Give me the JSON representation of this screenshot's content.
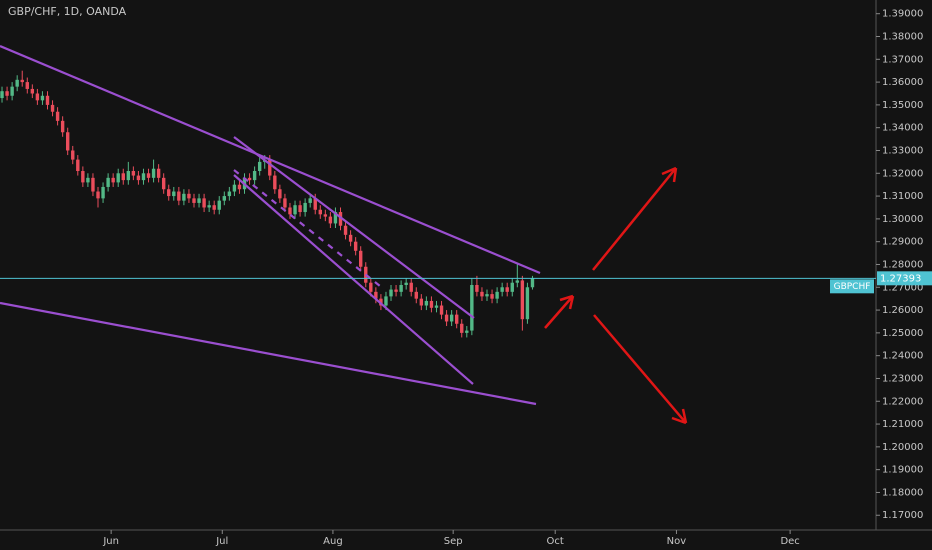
{
  "chart_data": {
    "type": "candlestick",
    "title": "GBP/CHF, 1D, OANDA",
    "symbol": "GBPCHF",
    "up_color": "#53b987",
    "down_color": "#eb4d5c",
    "last_price": 1.27393,
    "last_price_color": "#4fc3d2",
    "open": [
      1.353,
      1.356,
      1.354,
      1.358,
      1.361,
      1.36,
      1.357,
      1.355,
      1.352,
      1.354,
      1.35,
      1.347,
      1.343,
      1.338,
      1.33,
      1.326,
      1.321,
      1.316,
      1.318,
      1.312,
      1.309,
      1.314,
      1.318,
      1.316,
      1.32,
      1.317,
      1.321,
      1.319,
      1.317,
      1.32,
      1.318,
      1.322,
      1.318,
      1.313,
      1.31,
      1.312,
      1.308,
      1.311,
      1.309,
      1.307,
      1.309,
      1.305,
      1.306,
      1.304,
      1.308,
      1.31,
      1.312,
      1.315,
      1.313,
      1.318,
      1.317,
      1.321,
      1.325,
      1.326,
      1.319,
      1.313,
      1.309,
      1.305,
      1.302,
      1.306,
      1.303,
      1.307,
      1.309,
      1.304,
      1.302,
      1.301,
      1.298,
      1.303,
      1.297,
      1.293,
      1.29,
      1.286,
      1.279,
      1.272,
      1.268,
      1.265,
      1.262,
      1.266,
      1.269,
      1.268,
      1.271,
      1.272,
      1.268,
      1.265,
      1.262,
      1.264,
      1.261,
      1.262,
      1.258,
      1.255,
      1.258,
      1.254,
      1.25,
      1.251,
      1.271,
      1.268,
      1.266,
      1.267,
      1.265,
      1.268,
      1.27,
      1.268,
      1.272,
      1.273,
      1.256,
      1.27
    ],
    "high": [
      1.358,
      1.358,
      1.36,
      1.363,
      1.365,
      1.362,
      1.359,
      1.357,
      1.356,
      1.356,
      1.352,
      1.349,
      1.345,
      1.34,
      1.332,
      1.328,
      1.323,
      1.32,
      1.32,
      1.314,
      1.316,
      1.32,
      1.32,
      1.322,
      1.322,
      1.325,
      1.323,
      1.321,
      1.322,
      1.322,
      1.326,
      1.324,
      1.32,
      1.315,
      1.314,
      1.314,
      1.313,
      1.313,
      1.311,
      1.311,
      1.311,
      1.308,
      1.308,
      1.31,
      1.312,
      1.314,
      1.317,
      1.317,
      1.32,
      1.32,
      1.323,
      1.327,
      1.328,
      1.328,
      1.321,
      1.315,
      1.311,
      1.307,
      1.308,
      1.308,
      1.309,
      1.311,
      1.311,
      1.306,
      1.304,
      1.303,
      1.305,
      1.305,
      1.299,
      1.295,
      1.292,
      1.288,
      1.281,
      1.274,
      1.27,
      1.267,
      1.268,
      1.271,
      1.271,
      1.273,
      1.274,
      1.274,
      1.27,
      1.267,
      1.266,
      1.266,
      1.264,
      1.264,
      1.26,
      1.26,
      1.26,
      1.256,
      1.253,
      1.274,
      1.275,
      1.27,
      1.269,
      1.269,
      1.27,
      1.272,
      1.272,
      1.274,
      1.28,
      1.275,
      1.272,
      1.275
    ],
    "low": [
      1.351,
      1.352,
      1.352,
      1.356,
      1.358,
      1.355,
      1.353,
      1.35,
      1.35,
      1.348,
      1.345,
      1.341,
      1.336,
      1.328,
      1.324,
      1.319,
      1.314,
      1.314,
      1.31,
      1.305,
      1.307,
      1.312,
      1.314,
      1.314,
      1.315,
      1.315,
      1.317,
      1.315,
      1.315,
      1.316,
      1.316,
      1.316,
      1.311,
      1.308,
      1.308,
      1.306,
      1.306,
      1.307,
      1.305,
      1.305,
      1.303,
      1.303,
      1.302,
      1.302,
      1.306,
      1.308,
      1.31,
      1.311,
      1.311,
      1.315,
      1.315,
      1.319,
      1.322,
      1.317,
      1.311,
      1.307,
      1.303,
      1.3,
      1.3,
      1.301,
      1.301,
      1.305,
      1.302,
      1.3,
      1.299,
      1.296,
      1.296,
      1.295,
      1.291,
      1.288,
      1.284,
      1.277,
      1.27,
      1.266,
      1.263,
      1.26,
      1.26,
      1.264,
      1.266,
      1.266,
      1.269,
      1.266,
      1.263,
      1.26,
      1.26,
      1.259,
      1.259,
      1.256,
      1.253,
      1.253,
      1.252,
      1.248,
      1.248,
      1.249,
      1.266,
      1.264,
      1.264,
      1.263,
      1.263,
      1.266,
      1.266,
      1.266,
      1.27,
      1.251,
      1.254,
      1.269
    ],
    "close": [
      1.356,
      1.354,
      1.358,
      1.361,
      1.36,
      1.357,
      1.355,
      1.352,
      1.354,
      1.35,
      1.347,
      1.343,
      1.338,
      1.33,
      1.326,
      1.321,
      1.316,
      1.318,
      1.312,
      1.309,
      1.314,
      1.318,
      1.316,
      1.32,
      1.317,
      1.321,
      1.319,
      1.317,
      1.32,
      1.318,
      1.322,
      1.318,
      1.313,
      1.31,
      1.312,
      1.308,
      1.311,
      1.309,
      1.307,
      1.309,
      1.305,
      1.306,
      1.304,
      1.308,
      1.31,
      1.312,
      1.315,
      1.313,
      1.318,
      1.317,
      1.321,
      1.325,
      1.326,
      1.319,
      1.313,
      1.309,
      1.305,
      1.302,
      1.306,
      1.303,
      1.307,
      1.309,
      1.304,
      1.302,
      1.301,
      1.298,
      1.303,
      1.297,
      1.293,
      1.29,
      1.286,
      1.279,
      1.272,
      1.268,
      1.265,
      1.262,
      1.266,
      1.269,
      1.268,
      1.271,
      1.272,
      1.268,
      1.265,
      1.262,
      1.264,
      1.261,
      1.262,
      1.258,
      1.255,
      1.258,
      1.254,
      1.25,
      1.251,
      1.271,
      1.268,
      1.266,
      1.267,
      1.265,
      1.268,
      1.27,
      1.268,
      1.272,
      1.273,
      1.256,
      1.27,
      1.27393
    ],
    "xlim": [
      -0.4,
      173
    ],
    "xticks": [
      {
        "value": 21.6,
        "label": "Jun"
      },
      {
        "value": 43.6,
        "label": "Jul"
      },
      {
        "value": 65.5,
        "label": "Aug"
      },
      {
        "value": 89.3,
        "label": "Sep"
      },
      {
        "value": 109.5,
        "label": "Oct"
      },
      {
        "value": 133.5,
        "label": "Nov"
      },
      {
        "value": 156,
        "label": "Dec"
      }
    ],
    "ylim": [
      1.16353,
      1.39601
    ],
    "yticks": [
      {
        "value": 1.17,
        "label": "1.17000"
      },
      {
        "value": 1.18,
        "label": "1.18000"
      },
      {
        "value": 1.19,
        "label": "1.19000"
      },
      {
        "value": 1.2,
        "label": "1.20000"
      },
      {
        "value": 1.21,
        "label": "1.21000"
      },
      {
        "value": 1.22,
        "label": "1.22000"
      },
      {
        "value": 1.23,
        "label": "1.23000"
      },
      {
        "value": 1.24,
        "label": "1.24000"
      },
      {
        "value": 1.25,
        "label": "1.25000"
      },
      {
        "value": 1.26,
        "label": "1.26000"
      },
      {
        "value": 1.27,
        "label": "1.27000"
      },
      {
        "value": 1.28,
        "label": "1.28000"
      },
      {
        "value": 1.29,
        "label": "1.29000"
      },
      {
        "value": 1.3,
        "label": "1.30000"
      },
      {
        "value": 1.31,
        "label": "1.31000"
      },
      {
        "value": 1.32,
        "label": "1.32000"
      },
      {
        "value": 1.33,
        "label": "1.33000"
      },
      {
        "value": 1.34,
        "label": "1.34000"
      },
      {
        "value": 1.35,
        "label": "1.35000"
      },
      {
        "value": 1.36,
        "label": "1.36000"
      },
      {
        "value": 1.37,
        "label": "1.37000"
      },
      {
        "value": 1.38,
        "label": "1.38000"
      },
      {
        "value": 1.39,
        "label": "1.39000"
      }
    ]
  }
}
